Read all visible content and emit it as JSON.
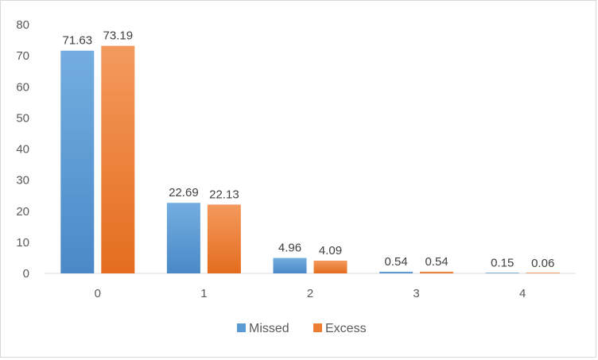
{
  "chart_data": {
    "type": "bar",
    "categories": [
      "0",
      "1",
      "2",
      "3",
      "4"
    ],
    "series": [
      {
        "name": "Missed",
        "values": [
          71.63,
          22.69,
          4.96,
          0.54,
          0.15
        ],
        "color": "#5b9bd5"
      },
      {
        "name": "Excess",
        "values": [
          73.19,
          22.13,
          4.09,
          0.54,
          0.06
        ],
        "color": "#ed7d31"
      }
    ],
    "data_labels": [
      [
        "71.63",
        "22.69",
        "4.96",
        "0.54",
        "0.15"
      ],
      [
        "73.19",
        "22.13",
        "4.09",
        "0.54",
        "0.06"
      ]
    ],
    "ylim": [
      0,
      80
    ],
    "yticks": [
      "0",
      "10",
      "20",
      "30",
      "40",
      "50",
      "60",
      "70",
      "80"
    ],
    "grid": false,
    "legend_position": "bottom-center"
  }
}
